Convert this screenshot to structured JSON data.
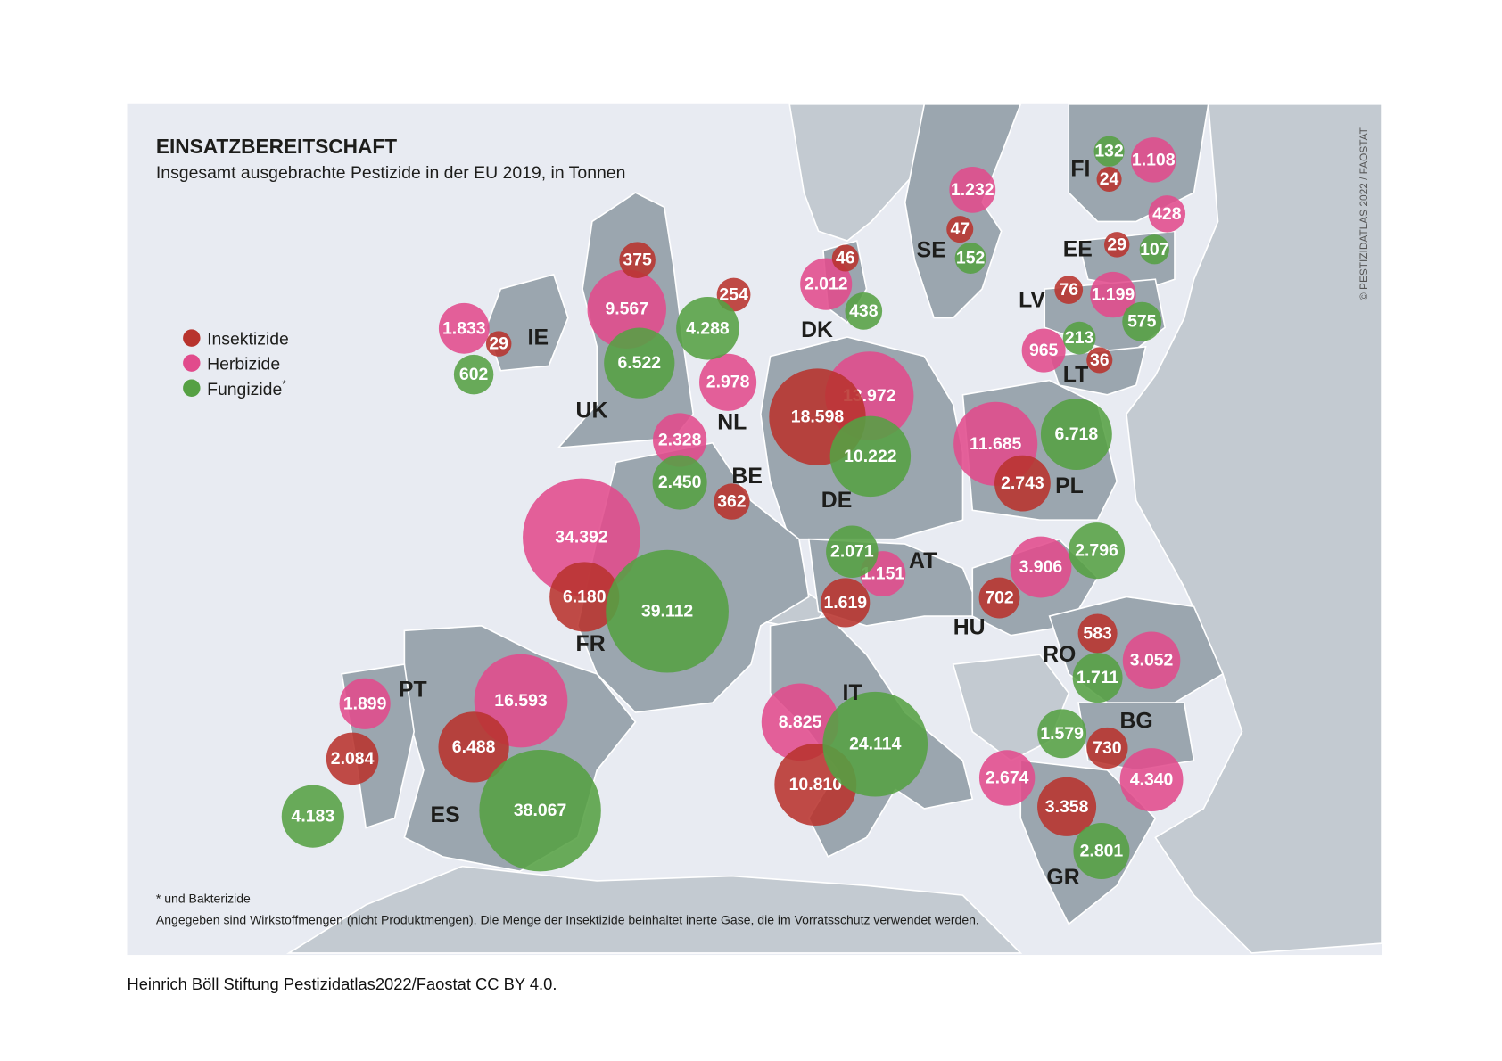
{
  "title": "EINSATZBEREITSCHAFT",
  "subtitle": "Insgesamt ausgebrachte Pestizide in der EU 2019, in Tonnen",
  "copyright": "© PESTIZIDATLAS 2022 / FAOSTAT",
  "footnote": "* und Bakterizide",
  "note": "Angegeben sind Wirkstoffmengen (nicht Produktmengen). Die Menge der Insektizide beinhaltet inerte Gase, die im Vorratsschutz verwendet werden.",
  "credit": "Heinrich Böll Stiftung Pestizidatlas2022/Faostat CC BY 4.0.",
  "colors": {
    "background": "#e8ebf2",
    "eu_land": "#9ba6af",
    "other_land": "#c3cad1",
    "insektizide": "#b8332d",
    "herbizide": "#e14b8c",
    "fungizide": "#55a043"
  },
  "legend": [
    {
      "key": "insektizide",
      "label": "Insektizide"
    },
    {
      "key": "herbizide",
      "label": "Herbizide"
    },
    {
      "key": "fungizide",
      "label": "Fungizide",
      "marker": "*"
    }
  ],
  "chart_data": {
    "type": "proportional-symbol-map",
    "unit": "Tonnen",
    "year": 2019,
    "countries": [
      {
        "code": "IE",
        "insektizide": "29",
        "herbizide": "1.833",
        "fungizide": "602"
      },
      {
        "code": "UK",
        "insektizide": "375",
        "herbizide": "9.567",
        "fungizide": "6.522"
      },
      {
        "code": "NL",
        "insektizide": "254",
        "herbizide": "2.978",
        "fungizide": "4.288"
      },
      {
        "code": "BE",
        "insektizide": "362",
        "herbizide": "2.328",
        "fungizide": "2.450"
      },
      {
        "code": "DK",
        "insektizide": "46",
        "herbizide": "2.012",
        "fungizide": "438"
      },
      {
        "code": "DE",
        "insektizide": "18.598",
        "herbizide": "13.972",
        "fungizide": "10.222"
      },
      {
        "code": "SE",
        "insektizide": "47",
        "herbizide": "1.232",
        "fungizide": "152"
      },
      {
        "code": "FI",
        "insektizide": "24",
        "herbizide": "1.108",
        "fungizide": "132"
      },
      {
        "code": "EE",
        "insektizide": "29",
        "herbizide": "428",
        "fungizide": "107"
      },
      {
        "code": "LV",
        "insektizide": "76",
        "herbizide": "1.199",
        "fungizide": "575"
      },
      {
        "code": "LT",
        "insektizide": "36",
        "herbizide": "965",
        "fungizide": "213"
      },
      {
        "code": "PL",
        "insektizide": "2.743",
        "herbizide": "11.685",
        "fungizide": "6.718"
      },
      {
        "code": "FR",
        "insektizide": "6.180",
        "herbizide": "34.392",
        "fungizide": "39.112"
      },
      {
        "code": "AT",
        "insektizide": "1.619",
        "herbizide": "1.151",
        "fungizide": "2.071"
      },
      {
        "code": "HU",
        "insektizide": "702",
        "herbizide": "3.906",
        "fungizide": "2.796"
      },
      {
        "code": "RO",
        "insektizide": "583",
        "herbizide": "3.052",
        "fungizide": "1.711"
      },
      {
        "code": "PT",
        "insektizide": "2.084",
        "herbizide": "1.899",
        "fungizide": "4.183"
      },
      {
        "code": "ES",
        "insektizide": "6.488",
        "herbizide": "16.593",
        "fungizide": "38.067"
      },
      {
        "code": "IT",
        "insektizide": "10.810",
        "herbizide": "8.825",
        "fungizide": "24.114"
      },
      {
        "code": "BG",
        "insektizide": "730",
        "herbizide": "4.340",
        "fungizide": "1.579"
      },
      {
        "code": "GR",
        "insektizide": "3.358",
        "herbizide": "2.674",
        "fungizide": "2.801"
      }
    ]
  }
}
